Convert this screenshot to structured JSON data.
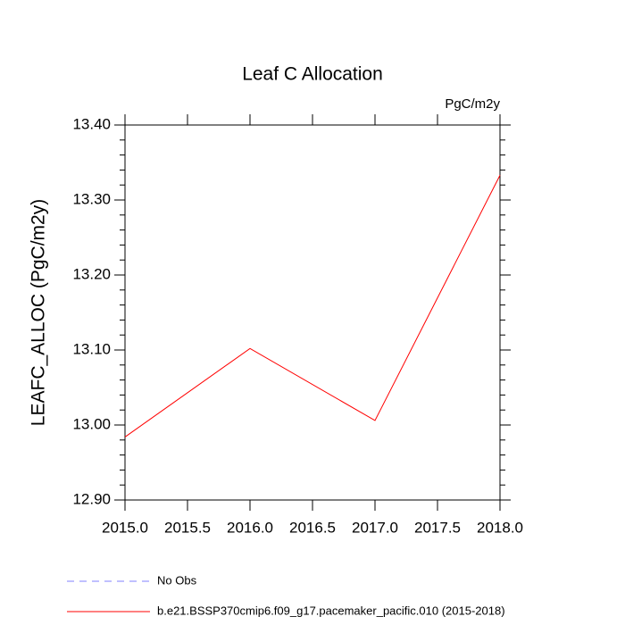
{
  "chart_data": {
    "type": "line",
    "title": "Leaf C Allocation",
    "units": "PgC/m2y",
    "ylabel": "LEAFC_ALLOC  (PgC/m2y)",
    "x": [
      2015,
      2016,
      2017,
      2018
    ],
    "series": [
      {
        "name": "No Obs",
        "color": "#8080ff",
        "dashed": true,
        "values": [
          null,
          null,
          null,
          null
        ]
      },
      {
        "name": "b.e21.BSSP370cmip6.f09_g17.pacemaker_pacific.010 (2015-2018)",
        "color": "#ff0000",
        "dashed": false,
        "values": [
          12.984,
          13.102,
          13.006,
          13.333
        ]
      }
    ],
    "xlim": [
      2015,
      2018
    ],
    "xticks": [
      {
        "value": 2015,
        "label": "2015.0"
      },
      {
        "value": 2015.5,
        "label": "2015.5"
      },
      {
        "value": 2016,
        "label": "2016.0"
      },
      {
        "value": 2016.5,
        "label": "2016.5"
      },
      {
        "value": 2017,
        "label": "2017.0"
      },
      {
        "value": 2017.5,
        "label": "2017.5"
      },
      {
        "value": 2018,
        "label": "2018.0"
      }
    ],
    "ylim": [
      12.9,
      13.4
    ],
    "yticks": [
      {
        "value": 12.9,
        "label": "12.90"
      },
      {
        "value": 13.0,
        "label": "13.00"
      },
      {
        "value": 13.1,
        "label": "13.10"
      },
      {
        "value": 13.2,
        "label": "13.20"
      },
      {
        "value": 13.3,
        "label": "13.30"
      },
      {
        "value": 13.4,
        "label": "13.40"
      }
    ],
    "grid": false
  }
}
